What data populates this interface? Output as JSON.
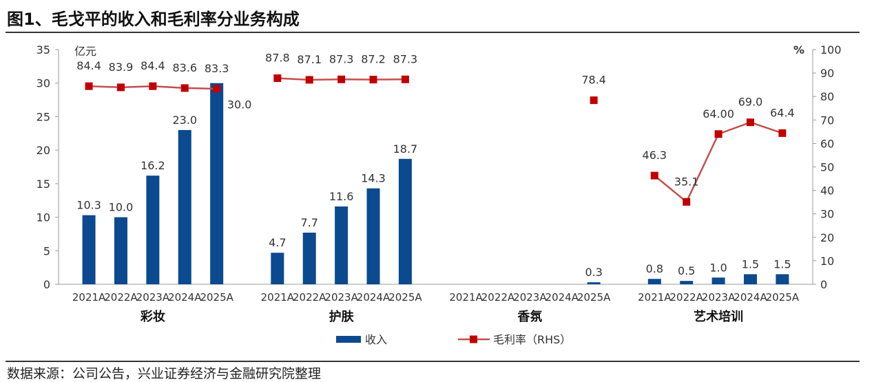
{
  "title": "图1、毛戈平的收入和毛利率分业务构成",
  "source": "数据来源：公司公告，兴业证券经济与金融研究院整理",
  "colors": {
    "bar": "#0b4a8f",
    "line": "#c0504d",
    "marker": "#c00000"
  },
  "chart_data": {
    "type": "bar",
    "left_unit": "亿元",
    "right_unit": "%",
    "ylim_left": [
      0,
      35
    ],
    "yticks_left": [
      0,
      5,
      10,
      15,
      20,
      25,
      30,
      35
    ],
    "ylim_right": [
      0,
      100
    ],
    "yticks_right": [
      0,
      10,
      20,
      30,
      40,
      50,
      60,
      70,
      80,
      90,
      100
    ],
    "groups": [
      {
        "name": "彩妆",
        "categories": [
          "2021A",
          "2022A",
          "2023A",
          "2024A",
          "2025A"
        ],
        "revenue": [
          10.3,
          10.0,
          16.2,
          23.0,
          30.0
        ],
        "revenue_labels": [
          "10.3",
          "10.0",
          "16.2",
          "23.0",
          "30.0"
        ],
        "margin": [
          84.4,
          83.9,
          84.4,
          83.6,
          83.3
        ],
        "margin_labels": [
          "84.4",
          "83.9",
          "84.4",
          "83.6",
          "83.3"
        ]
      },
      {
        "name": "护肤",
        "categories": [
          "2021A",
          "2022A",
          "2023A",
          "2024A",
          "2025A"
        ],
        "revenue": [
          4.7,
          7.7,
          11.6,
          14.3,
          18.7
        ],
        "revenue_labels": [
          "4.7",
          "7.7",
          "11.6",
          "14.3",
          "18.7"
        ],
        "margin": [
          87.8,
          87.1,
          87.3,
          87.2,
          87.3
        ],
        "margin_labels": [
          "87.8",
          "87.1",
          "87.3",
          "87.2",
          "87.3"
        ]
      },
      {
        "name": "香氛",
        "categories": [
          "2021A",
          "2022A",
          "2023A",
          "2024A",
          "2025A"
        ],
        "revenue": [
          null,
          null,
          null,
          null,
          0.3
        ],
        "revenue_labels": [
          null,
          null,
          null,
          null,
          "0.3"
        ],
        "margin": [
          null,
          null,
          null,
          null,
          78.4
        ],
        "margin_labels": [
          null,
          null,
          null,
          null,
          "78.4"
        ]
      },
      {
        "name": "艺术培训",
        "categories": [
          "2021A",
          "2022A",
          "2023A",
          "2024A",
          "2025A"
        ],
        "revenue": [
          0.8,
          0.5,
          1.0,
          1.5,
          1.5
        ],
        "revenue_labels": [
          "0.8",
          "0.5",
          "1.0",
          "1.5",
          "1.5"
        ],
        "margin": [
          46.3,
          35.1,
          64.0,
          69.0,
          64.4
        ],
        "margin_labels": [
          "46.3",
          "35.1",
          "64.00",
          "69.0",
          "64.4"
        ]
      }
    ],
    "series": [
      {
        "name": "收入",
        "type": "bar",
        "axis": "left"
      },
      {
        "name": "毛利率（RHS）",
        "type": "line",
        "axis": "right"
      }
    ],
    "legend_position": "bottom-center",
    "grid": false
  }
}
